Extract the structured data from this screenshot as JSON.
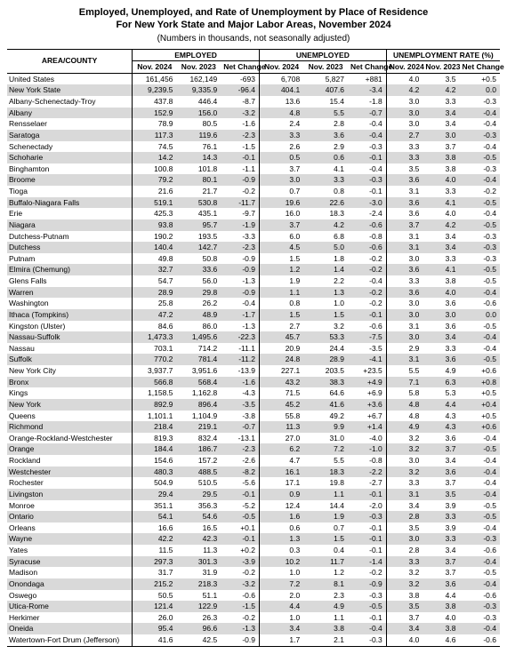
{
  "title_line1": "Employed, Unemployed, and Rate of Unemployment by Place of Residence",
  "title_line2": "For New York State and Major Labor Areas, November 2024",
  "subtitle": "(Numbers in thousands, not seasonally adjusted)",
  "header": {
    "area": "AREA/COUNTY",
    "employed": "EMPLOYED",
    "unemployed": "UNEMPLOYED",
    "rate": "UNEMPLOYMENT RATE (%)",
    "nov2024": "Nov. 2024",
    "nov2023": "Nov. 2023",
    "net": "Net Change"
  },
  "rows": [
    {
      "area": "United States",
      "indent": 0,
      "shade": false,
      "e24": "161,456",
      "e23": "162,149",
      "eN": "-693",
      "u24": "6,708",
      "u23": "5,827",
      "uN": "+881",
      "r24": "4.0",
      "r23": "3.5",
      "rN": "+0.5"
    },
    {
      "area": "New York State",
      "indent": 0,
      "shade": true,
      "e24": "9,239.5",
      "e23": "9,335.9",
      "eN": "-96.4",
      "u24": "404.1",
      "u23": "407.6",
      "uN": "-3.4",
      "r24": "4.2",
      "r23": "4.2",
      "rN": "0.0"
    },
    {
      "area": "Albany-Schenectady-Troy",
      "indent": 0,
      "shade": false,
      "e24": "437.8",
      "e23": "446.4",
      "eN": "-8.7",
      "u24": "13.6",
      "u23": "15.4",
      "uN": "-1.8",
      "r24": "3.0",
      "r23": "3.3",
      "rN": "-0.3"
    },
    {
      "area": "Albany",
      "indent": 1,
      "shade": true,
      "e24": "152.9",
      "e23": "156.0",
      "eN": "-3.2",
      "u24": "4.8",
      "u23": "5.5",
      "uN": "-0.7",
      "r24": "3.0",
      "r23": "3.4",
      "rN": "-0.4"
    },
    {
      "area": "Rensselaer",
      "indent": 1,
      "shade": false,
      "e24": "78.9",
      "e23": "80.5",
      "eN": "-1.6",
      "u24": "2.4",
      "u23": "2.8",
      "uN": "-0.4",
      "r24": "3.0",
      "r23": "3.4",
      "rN": "-0.4"
    },
    {
      "area": "Saratoga",
      "indent": 1,
      "shade": true,
      "e24": "117.3",
      "e23": "119.6",
      "eN": "-2.3",
      "u24": "3.3",
      "u23": "3.6",
      "uN": "-0.4",
      "r24": "2.7",
      "r23": "3.0",
      "rN": "-0.3"
    },
    {
      "area": "Schenectady",
      "indent": 1,
      "shade": false,
      "e24": "74.5",
      "e23": "76.1",
      "eN": "-1.5",
      "u24": "2.6",
      "u23": "2.9",
      "uN": "-0.3",
      "r24": "3.3",
      "r23": "3.7",
      "rN": "-0.4"
    },
    {
      "area": "Schoharie",
      "indent": 1,
      "shade": true,
      "e24": "14.2",
      "e23": "14.3",
      "eN": "-0.1",
      "u24": "0.5",
      "u23": "0.6",
      "uN": "-0.1",
      "r24": "3.3",
      "r23": "3.8",
      "rN": "-0.5"
    },
    {
      "area": "Binghamton",
      "indent": 0,
      "shade": false,
      "e24": "100.8",
      "e23": "101.8",
      "eN": "-1.1",
      "u24": "3.7",
      "u23": "4.1",
      "uN": "-0.4",
      "r24": "3.5",
      "r23": "3.8",
      "rN": "-0.3"
    },
    {
      "area": "Broome",
      "indent": 1,
      "shade": true,
      "e24": "79.2",
      "e23": "80.1",
      "eN": "-0.9",
      "u24": "3.0",
      "u23": "3.3",
      "uN": "-0.3",
      "r24": "3.6",
      "r23": "4.0",
      "rN": "-0.4"
    },
    {
      "area": "Tioga",
      "indent": 1,
      "shade": false,
      "e24": "21.6",
      "e23": "21.7",
      "eN": "-0.2",
      "u24": "0.7",
      "u23": "0.8",
      "uN": "-0.1",
      "r24": "3.1",
      "r23": "3.3",
      "rN": "-0.2"
    },
    {
      "area": "Buffalo-Niagara Falls",
      "indent": 0,
      "shade": true,
      "e24": "519.1",
      "e23": "530.8",
      "eN": "-11.7",
      "u24": "19.6",
      "u23": "22.6",
      "uN": "-3.0",
      "r24": "3.6",
      "r23": "4.1",
      "rN": "-0.5"
    },
    {
      "area": "Erie",
      "indent": 1,
      "shade": false,
      "e24": "425.3",
      "e23": "435.1",
      "eN": "-9.7",
      "u24": "16.0",
      "u23": "18.3",
      "uN": "-2.4",
      "r24": "3.6",
      "r23": "4.0",
      "rN": "-0.4"
    },
    {
      "area": "Niagara",
      "indent": 1,
      "shade": true,
      "e24": "93.8",
      "e23": "95.7",
      "eN": "-1.9",
      "u24": "3.7",
      "u23": "4.2",
      "uN": "-0.6",
      "r24": "3.7",
      "r23": "4.2",
      "rN": "-0.5"
    },
    {
      "area": "Dutchess-Putnam",
      "indent": 0,
      "shade": false,
      "e24": "190.2",
      "e23": "193.5",
      "eN": "-3.3",
      "u24": "6.0",
      "u23": "6.8",
      "uN": "-0.8",
      "r24": "3.1",
      "r23": "3.4",
      "rN": "-0.3"
    },
    {
      "area": "Dutchess",
      "indent": 1,
      "shade": true,
      "e24": "140.4",
      "e23": "142.7",
      "eN": "-2.3",
      "u24": "4.5",
      "u23": "5.0",
      "uN": "-0.6",
      "r24": "3.1",
      "r23": "3.4",
      "rN": "-0.3"
    },
    {
      "area": "Putnam",
      "indent": 1,
      "shade": false,
      "e24": "49.8",
      "e23": "50.8",
      "eN": "-0.9",
      "u24": "1.5",
      "u23": "1.8",
      "uN": "-0.2",
      "r24": "3.0",
      "r23": "3.3",
      "rN": "-0.3"
    },
    {
      "area": "Elmira (Chemung)",
      "indent": 0,
      "shade": true,
      "e24": "32.7",
      "e23": "33.6",
      "eN": "-0.9",
      "u24": "1.2",
      "u23": "1.4",
      "uN": "-0.2",
      "r24": "3.6",
      "r23": "4.1",
      "rN": "-0.5"
    },
    {
      "area": "Glens Falls",
      "indent": 0,
      "shade": false,
      "e24": "54.7",
      "e23": "56.0",
      "eN": "-1.3",
      "u24": "1.9",
      "u23": "2.2",
      "uN": "-0.4",
      "r24": "3.3",
      "r23": "3.8",
      "rN": "-0.5"
    },
    {
      "area": "Warren",
      "indent": 1,
      "shade": true,
      "e24": "28.9",
      "e23": "29.8",
      "eN": "-0.9",
      "u24": "1.1",
      "u23": "1.3",
      "uN": "-0.2",
      "r24": "3.6",
      "r23": "4.0",
      "rN": "-0.4"
    },
    {
      "area": "Washington",
      "indent": 1,
      "shade": false,
      "e24": "25.8",
      "e23": "26.2",
      "eN": "-0.4",
      "u24": "0.8",
      "u23": "1.0",
      "uN": "-0.2",
      "r24": "3.0",
      "r23": "3.6",
      "rN": "-0.6"
    },
    {
      "area": "Ithaca (Tompkins)",
      "indent": 0,
      "shade": true,
      "e24": "47.2",
      "e23": "48.9",
      "eN": "-1.7",
      "u24": "1.5",
      "u23": "1.5",
      "uN": "-0.1",
      "r24": "3.0",
      "r23": "3.0",
      "rN": "0.0"
    },
    {
      "area": "Kingston (Ulster)",
      "indent": 0,
      "shade": false,
      "e24": "84.6",
      "e23": "86.0",
      "eN": "-1.3",
      "u24": "2.7",
      "u23": "3.2",
      "uN": "-0.6",
      "r24": "3.1",
      "r23": "3.6",
      "rN": "-0.5"
    },
    {
      "area": "Nassau-Suffolk",
      "indent": 0,
      "shade": true,
      "e24": "1,473.3",
      "e23": "1,495.6",
      "eN": "-22.3",
      "u24": "45.7",
      "u23": "53.3",
      "uN": "-7.5",
      "r24": "3.0",
      "r23": "3.4",
      "rN": "-0.4"
    },
    {
      "area": "Nassau",
      "indent": 1,
      "shade": false,
      "e24": "703.1",
      "e23": "714.2",
      "eN": "-11.1",
      "u24": "20.9",
      "u23": "24.4",
      "uN": "-3.5",
      "r24": "2.9",
      "r23": "3.3",
      "rN": "-0.4"
    },
    {
      "area": "Suffolk",
      "indent": 1,
      "shade": true,
      "e24": "770.2",
      "e23": "781.4",
      "eN": "-11.2",
      "u24": "24.8",
      "u23": "28.9",
      "uN": "-4.1",
      "r24": "3.1",
      "r23": "3.6",
      "rN": "-0.5"
    },
    {
      "area": "New York City",
      "indent": 0,
      "shade": false,
      "e24": "3,937.7",
      "e23": "3,951.6",
      "eN": "-13.9",
      "u24": "227.1",
      "u23": "203.5",
      "uN": "+23.5",
      "r24": "5.5",
      "r23": "4.9",
      "rN": "+0.6"
    },
    {
      "area": "Bronx",
      "indent": 1,
      "shade": true,
      "e24": "566.8",
      "e23": "568.4",
      "eN": "-1.6",
      "u24": "43.2",
      "u23": "38.3",
      "uN": "+4.9",
      "r24": "7.1",
      "r23": "6.3",
      "rN": "+0.8"
    },
    {
      "area": "Kings",
      "indent": 1,
      "shade": false,
      "e24": "1,158.5",
      "e23": "1,162.8",
      "eN": "-4.3",
      "u24": "71.5",
      "u23": "64.6",
      "uN": "+6.9",
      "r24": "5.8",
      "r23": "5.3",
      "rN": "+0.5"
    },
    {
      "area": "New York",
      "indent": 1,
      "shade": true,
      "e24": "892.9",
      "e23": "896.4",
      "eN": "-3.5",
      "u24": "45.2",
      "u23": "41.6",
      "uN": "+3.6",
      "r24": "4.8",
      "r23": "4.4",
      "rN": "+0.4"
    },
    {
      "area": "Queens",
      "indent": 1,
      "shade": false,
      "e24": "1,101.1",
      "e23": "1,104.9",
      "eN": "-3.8",
      "u24": "55.8",
      "u23": "49.2",
      "uN": "+6.7",
      "r24": "4.8",
      "r23": "4.3",
      "rN": "+0.5"
    },
    {
      "area": "Richmond",
      "indent": 1,
      "shade": true,
      "e24": "218.4",
      "e23": "219.1",
      "eN": "-0.7",
      "u24": "11.3",
      "u23": "9.9",
      "uN": "+1.4",
      "r24": "4.9",
      "r23": "4.3",
      "rN": "+0.6"
    },
    {
      "area": "Orange-Rockland-Westchester",
      "indent": 0,
      "shade": false,
      "e24": "819.3",
      "e23": "832.4",
      "eN": "-13.1",
      "u24": "27.0",
      "u23": "31.0",
      "uN": "-4.0",
      "r24": "3.2",
      "r23": "3.6",
      "rN": "-0.4"
    },
    {
      "area": "Orange",
      "indent": 1,
      "shade": true,
      "e24": "184.4",
      "e23": "186.7",
      "eN": "-2.3",
      "u24": "6.2",
      "u23": "7.2",
      "uN": "-1.0",
      "r24": "3.2",
      "r23": "3.7",
      "rN": "-0.5"
    },
    {
      "area": "Rockland",
      "indent": 1,
      "shade": false,
      "e24": "154.6",
      "e23": "157.2",
      "eN": "-2.6",
      "u24": "4.7",
      "u23": "5.5",
      "uN": "-0.8",
      "r24": "3.0",
      "r23": "3.4",
      "rN": "-0.4"
    },
    {
      "area": "Westchester",
      "indent": 1,
      "shade": true,
      "e24": "480.3",
      "e23": "488.5",
      "eN": "-8.2",
      "u24": "16.1",
      "u23": "18.3",
      "uN": "-2.2",
      "r24": "3.2",
      "r23": "3.6",
      "rN": "-0.4"
    },
    {
      "area": "Rochester",
      "indent": 0,
      "shade": false,
      "e24": "504.9",
      "e23": "510.5",
      "eN": "-5.6",
      "u24": "17.1",
      "u23": "19.8",
      "uN": "-2.7",
      "r24": "3.3",
      "r23": "3.7",
      "rN": "-0.4"
    },
    {
      "area": "Livingston",
      "indent": 1,
      "shade": true,
      "e24": "29.4",
      "e23": "29.5",
      "eN": "-0.1",
      "u24": "0.9",
      "u23": "1.1",
      "uN": "-0.1",
      "r24": "3.1",
      "r23": "3.5",
      "rN": "-0.4"
    },
    {
      "area": "Monroe",
      "indent": 1,
      "shade": false,
      "e24": "351.1",
      "e23": "356.3",
      "eN": "-5.2",
      "u24": "12.4",
      "u23": "14.4",
      "uN": "-2.0",
      "r24": "3.4",
      "r23": "3.9",
      "rN": "-0.5"
    },
    {
      "area": "Ontario",
      "indent": 1,
      "shade": true,
      "e24": "54.1",
      "e23": "54.6",
      "eN": "-0.5",
      "u24": "1.6",
      "u23": "1.9",
      "uN": "-0.3",
      "r24": "2.8",
      "r23": "3.3",
      "rN": "-0.5"
    },
    {
      "area": "Orleans",
      "indent": 1,
      "shade": false,
      "e24": "16.6",
      "e23": "16.5",
      "eN": "+0.1",
      "u24": "0.6",
      "u23": "0.7",
      "uN": "-0.1",
      "r24": "3.5",
      "r23": "3.9",
      "rN": "-0.4"
    },
    {
      "area": "Wayne",
      "indent": 1,
      "shade": true,
      "e24": "42.2",
      "e23": "42.3",
      "eN": "-0.1",
      "u24": "1.3",
      "u23": "1.5",
      "uN": "-0.1",
      "r24": "3.0",
      "r23": "3.3",
      "rN": "-0.3"
    },
    {
      "area": "Yates",
      "indent": 1,
      "shade": false,
      "e24": "11.5",
      "e23": "11.3",
      "eN": "+0.2",
      "u24": "0.3",
      "u23": "0.4",
      "uN": "-0.1",
      "r24": "2.8",
      "r23": "3.4",
      "rN": "-0.6"
    },
    {
      "area": "Syracuse",
      "indent": 0,
      "shade": true,
      "e24": "297.3",
      "e23": "301.3",
      "eN": "-3.9",
      "u24": "10.2",
      "u23": "11.7",
      "uN": "-1.4",
      "r24": "3.3",
      "r23": "3.7",
      "rN": "-0.4"
    },
    {
      "area": "Madison",
      "indent": 1,
      "shade": false,
      "e24": "31.7",
      "e23": "31.9",
      "eN": "-0.2",
      "u24": "1.0",
      "u23": "1.2",
      "uN": "-0.2",
      "r24": "3.2",
      "r23": "3.7",
      "rN": "-0.5"
    },
    {
      "area": "Onondaga",
      "indent": 1,
      "shade": true,
      "e24": "215.2",
      "e23": "218.3",
      "eN": "-3.2",
      "u24": "7.2",
      "u23": "8.1",
      "uN": "-0.9",
      "r24": "3.2",
      "r23": "3.6",
      "rN": "-0.4"
    },
    {
      "area": "Oswego",
      "indent": 1,
      "shade": false,
      "e24": "50.5",
      "e23": "51.1",
      "eN": "-0.6",
      "u24": "2.0",
      "u23": "2.3",
      "uN": "-0.3",
      "r24": "3.8",
      "r23": "4.4",
      "rN": "-0.6"
    },
    {
      "area": "Utica-Rome",
      "indent": 0,
      "shade": true,
      "e24": "121.4",
      "e23": "122.9",
      "eN": "-1.5",
      "u24": "4.4",
      "u23": "4.9",
      "uN": "-0.5",
      "r24": "3.5",
      "r23": "3.8",
      "rN": "-0.3"
    },
    {
      "area": "Herkimer",
      "indent": 1,
      "shade": false,
      "e24": "26.0",
      "e23": "26.3",
      "eN": "-0.2",
      "u24": "1.0",
      "u23": "1.1",
      "uN": "-0.1",
      "r24": "3.7",
      "r23": "4.0",
      "rN": "-0.3"
    },
    {
      "area": "Oneida",
      "indent": 1,
      "shade": true,
      "e24": "95.4",
      "e23": "96.6",
      "eN": "-1.3",
      "u24": "3.4",
      "u23": "3.8",
      "uN": "-0.4",
      "r24": "3.4",
      "r23": "3.8",
      "rN": "-0.4"
    },
    {
      "area": "Watertown-Fort Drum (Jefferson)",
      "indent": 0,
      "shade": false,
      "e24": "41.6",
      "e23": "42.5",
      "eN": "-0.9",
      "u24": "1.7",
      "u23": "2.1",
      "uN": "-0.3",
      "r24": "4.0",
      "r23": "4.6",
      "rN": "-0.6"
    }
  ]
}
